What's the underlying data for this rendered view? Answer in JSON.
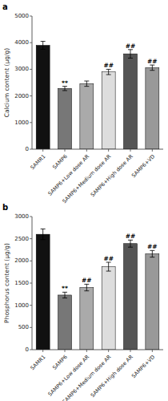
{
  "chart_data": [
    {
      "type": "bar",
      "title": "a",
      "ylabel": "Calcium content (μg/g)",
      "categories": [
        "SAMR1",
        "SAMP6",
        "SAMP6+Low dose AR",
        "SAMP6+Medium dose AR",
        "SAMP6+High dose AR",
        "SAMP6+VD"
      ],
      "values": [
        3900,
        2280,
        2460,
        2900,
        3580,
        3060
      ],
      "errors": [
        150,
        80,
        100,
        100,
        160,
        100
      ],
      "colors": [
        "#111111",
        "#777777",
        "#aaaaaa",
        "#dddddd",
        "#555555",
        "#999999"
      ],
      "annotations": [
        null,
        "**",
        null,
        "##",
        "##",
        "##"
      ],
      "ylim": [
        0,
        5000
      ],
      "yticks": [
        0,
        1000,
        2000,
        3000,
        4000,
        5000
      ],
      "grid": false
    },
    {
      "type": "bar",
      "title": "b",
      "ylabel": "Phosphorus content (μg/g)",
      "categories": [
        "SAMR1",
        "SAMP6",
        "SAMP6+Low dose AR",
        "SAMP6+Medium dose AR",
        "SAMP6+High dose AR",
        "SAMP6+VD"
      ],
      "values": [
        2600,
        1230,
        1400,
        1870,
        2390,
        2160
      ],
      "errors": [
        120,
        65,
        75,
        100,
        80,
        75
      ],
      "colors": [
        "#111111",
        "#777777",
        "#aaaaaa",
        "#dddddd",
        "#555555",
        "#999999"
      ],
      "annotations": [
        null,
        "**",
        "##",
        "##",
        "##",
        "##"
      ],
      "ylim": [
        0,
        3000
      ],
      "yticks": [
        0,
        500,
        1000,
        1500,
        2000,
        2500,
        3000
      ],
      "grid": false
    }
  ]
}
